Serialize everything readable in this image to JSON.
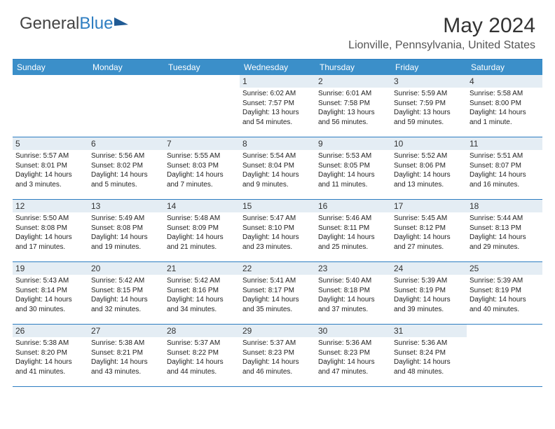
{
  "logo": {
    "part1": "General",
    "part2": "Blue"
  },
  "title": "May 2024",
  "location": "Lionville, Pennsylvania, United States",
  "dayNames": [
    "Sunday",
    "Monday",
    "Tuesday",
    "Wednesday",
    "Thursday",
    "Friday",
    "Saturday"
  ],
  "colors": {
    "header_bg": "#3b8fc9",
    "border": "#2d7dc1",
    "daynum_bg": "#e4edf4"
  },
  "weeks": [
    [
      {
        "n": "",
        "sr": "",
        "ss": "",
        "dl": ""
      },
      {
        "n": "",
        "sr": "",
        "ss": "",
        "dl": ""
      },
      {
        "n": "",
        "sr": "",
        "ss": "",
        "dl": ""
      },
      {
        "n": "1",
        "sr": "6:02 AM",
        "ss": "7:57 PM",
        "dl": "13 hours and 54 minutes."
      },
      {
        "n": "2",
        "sr": "6:01 AM",
        "ss": "7:58 PM",
        "dl": "13 hours and 56 minutes."
      },
      {
        "n": "3",
        "sr": "5:59 AM",
        "ss": "7:59 PM",
        "dl": "13 hours and 59 minutes."
      },
      {
        "n": "4",
        "sr": "5:58 AM",
        "ss": "8:00 PM",
        "dl": "14 hours and 1 minute."
      }
    ],
    [
      {
        "n": "5",
        "sr": "5:57 AM",
        "ss": "8:01 PM",
        "dl": "14 hours and 3 minutes."
      },
      {
        "n": "6",
        "sr": "5:56 AM",
        "ss": "8:02 PM",
        "dl": "14 hours and 5 minutes."
      },
      {
        "n": "7",
        "sr": "5:55 AM",
        "ss": "8:03 PM",
        "dl": "14 hours and 7 minutes."
      },
      {
        "n": "8",
        "sr": "5:54 AM",
        "ss": "8:04 PM",
        "dl": "14 hours and 9 minutes."
      },
      {
        "n": "9",
        "sr": "5:53 AM",
        "ss": "8:05 PM",
        "dl": "14 hours and 11 minutes."
      },
      {
        "n": "10",
        "sr": "5:52 AM",
        "ss": "8:06 PM",
        "dl": "14 hours and 13 minutes."
      },
      {
        "n": "11",
        "sr": "5:51 AM",
        "ss": "8:07 PM",
        "dl": "14 hours and 16 minutes."
      }
    ],
    [
      {
        "n": "12",
        "sr": "5:50 AM",
        "ss": "8:08 PM",
        "dl": "14 hours and 17 minutes."
      },
      {
        "n": "13",
        "sr": "5:49 AM",
        "ss": "8:08 PM",
        "dl": "14 hours and 19 minutes."
      },
      {
        "n": "14",
        "sr": "5:48 AM",
        "ss": "8:09 PM",
        "dl": "14 hours and 21 minutes."
      },
      {
        "n": "15",
        "sr": "5:47 AM",
        "ss": "8:10 PM",
        "dl": "14 hours and 23 minutes."
      },
      {
        "n": "16",
        "sr": "5:46 AM",
        "ss": "8:11 PM",
        "dl": "14 hours and 25 minutes."
      },
      {
        "n": "17",
        "sr": "5:45 AM",
        "ss": "8:12 PM",
        "dl": "14 hours and 27 minutes."
      },
      {
        "n": "18",
        "sr": "5:44 AM",
        "ss": "8:13 PM",
        "dl": "14 hours and 29 minutes."
      }
    ],
    [
      {
        "n": "19",
        "sr": "5:43 AM",
        "ss": "8:14 PM",
        "dl": "14 hours and 30 minutes."
      },
      {
        "n": "20",
        "sr": "5:42 AM",
        "ss": "8:15 PM",
        "dl": "14 hours and 32 minutes."
      },
      {
        "n": "21",
        "sr": "5:42 AM",
        "ss": "8:16 PM",
        "dl": "14 hours and 34 minutes."
      },
      {
        "n": "22",
        "sr": "5:41 AM",
        "ss": "8:17 PM",
        "dl": "14 hours and 35 minutes."
      },
      {
        "n": "23",
        "sr": "5:40 AM",
        "ss": "8:18 PM",
        "dl": "14 hours and 37 minutes."
      },
      {
        "n": "24",
        "sr": "5:39 AM",
        "ss": "8:19 PM",
        "dl": "14 hours and 39 minutes."
      },
      {
        "n": "25",
        "sr": "5:39 AM",
        "ss": "8:19 PM",
        "dl": "14 hours and 40 minutes."
      }
    ],
    [
      {
        "n": "26",
        "sr": "5:38 AM",
        "ss": "8:20 PM",
        "dl": "14 hours and 41 minutes."
      },
      {
        "n": "27",
        "sr": "5:38 AM",
        "ss": "8:21 PM",
        "dl": "14 hours and 43 minutes."
      },
      {
        "n": "28",
        "sr": "5:37 AM",
        "ss": "8:22 PM",
        "dl": "14 hours and 44 minutes."
      },
      {
        "n": "29",
        "sr": "5:37 AM",
        "ss": "8:23 PM",
        "dl": "14 hours and 46 minutes."
      },
      {
        "n": "30",
        "sr": "5:36 AM",
        "ss": "8:23 PM",
        "dl": "14 hours and 47 minutes."
      },
      {
        "n": "31",
        "sr": "5:36 AM",
        "ss": "8:24 PM",
        "dl": "14 hours and 48 minutes."
      },
      {
        "n": "",
        "sr": "",
        "ss": "",
        "dl": ""
      }
    ]
  ]
}
